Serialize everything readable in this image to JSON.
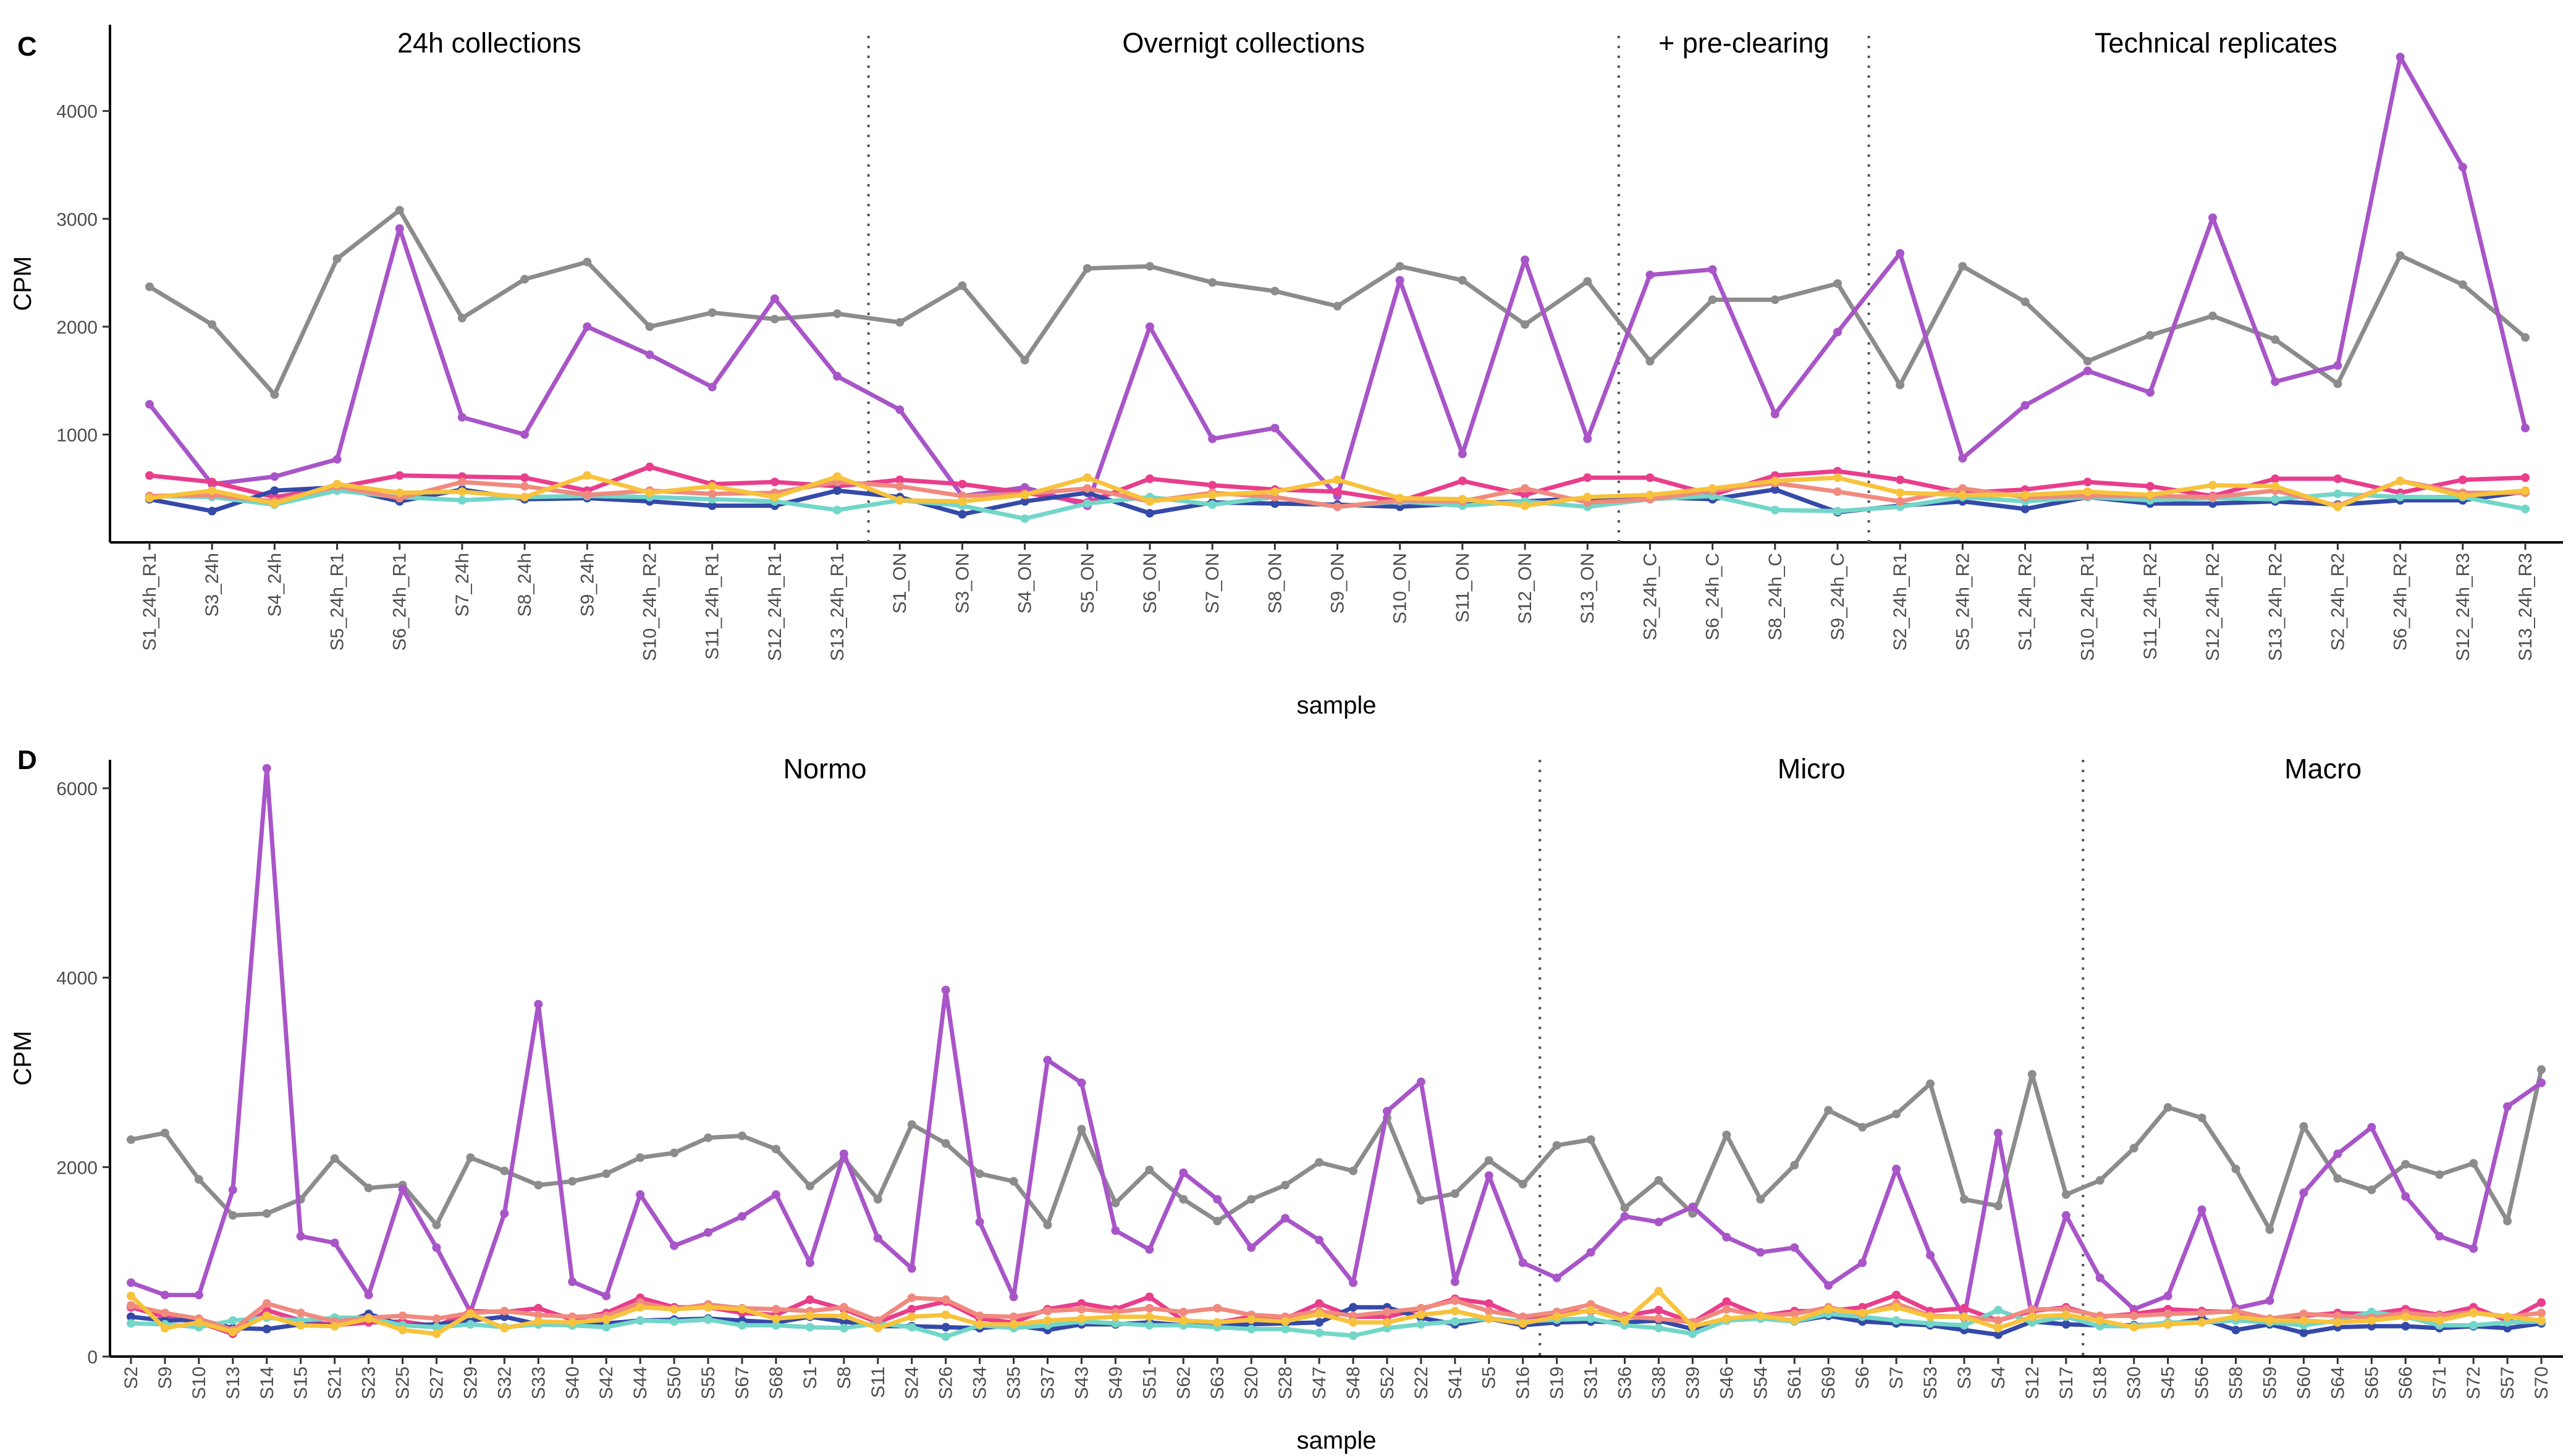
{
  "colors": {
    "grey": "#8c8c8c",
    "purple": "#a855c8",
    "navy": "#3449a8",
    "teal": "#72d6c8",
    "pink": "#e83e8c",
    "salmon": "#f08a7e",
    "yellow": "#f7c23c"
  },
  "chart_data": [
    {
      "type": "line",
      "panel_label": "C",
      "title": "",
      "xlabel": "sample",
      "ylabel": "CPM",
      "ylim": [
        0,
        4800
      ],
      "yticks": [
        1000,
        2000,
        3000,
        4000
      ],
      "groups": [
        {
          "label": "24h collections",
          "start": 0,
          "end": 11
        },
        {
          "label": "Overnigt collections",
          "start": 12,
          "end": 23
        },
        {
          "label": "+ pre-clearing",
          "start": 24,
          "end": 27
        },
        {
          "label": "Technical replicates",
          "start": 28,
          "end": 39
        }
      ],
      "categories": [
        "S1_24h_R1",
        "S3_24h",
        "S4_24h",
        "S5_24h_R1",
        "S6_24h_R1",
        "S7_24h",
        "S8_24h",
        "S9_24h",
        "S10_24h_R2",
        "S11_24h_R1",
        "S12_24h_R1",
        "S13_24h_R1",
        "S1_ON",
        "S3_ON",
        "S4_ON",
        "S5_ON",
        "S6_ON",
        "S7_ON",
        "S8_ON",
        "S9_ON",
        "S10_ON",
        "S11_ON",
        "S12_ON",
        "S13_ON",
        "S2_24h_C",
        "S6_24h_C",
        "S8_24h_C",
        "S9_24h_C",
        "S2_24h_R1",
        "S5_24h_R2",
        "S1_24h_R2",
        "S10_24h_R1",
        "S11_24h_R2",
        "S12_24h_R2",
        "S13_24h_R2",
        "S2_24h_R2",
        "S6_24h_R2",
        "S12_24h_R3",
        "S13_24h_R3"
      ],
      "series": [
        {
          "name": "grey",
          "color_key": "grey",
          "values": [
            2370,
            2020,
            1370,
            2630,
            3080,
            2080,
            2440,
            2600,
            2000,
            2130,
            2070,
            2120,
            2040,
            2380,
            1690,
            2540,
            2560,
            2410,
            2330,
            2190,
            2560,
            2430,
            2020,
            2420,
            1680,
            2250,
            2250,
            2400,
            1460,
            2560,
            2230,
            1680,
            1920,
            2100,
            1880,
            1470,
            2660,
            2390,
            1900
          ]
        },
        {
          "name": "purple",
          "color_key": "purple",
          "values": [
            1280,
            540,
            610,
            770,
            2910,
            1160,
            1000,
            2000,
            1740,
            1440,
            2260,
            1540,
            1230,
            430,
            510,
            340,
            2000,
            960,
            1060,
            430,
            2430,
            820,
            2620,
            960,
            2480,
            2530,
            1190,
            1950,
            2680,
            780,
            1270,
            1590,
            1390,
            3010,
            1490,
            1640,
            4500,
            3480,
            1060
          ]
        },
        {
          "name": "pink",
          "color_key": "pink",
          "values": [
            620,
            560,
            420,
            510,
            620,
            610,
            600,
            480,
            700,
            540,
            560,
            520,
            580,
            540,
            460,
            370,
            590,
            530,
            490,
            470,
            380,
            570,
            440,
            600,
            600,
            440,
            620,
            660,
            580,
            460,
            490,
            560,
            520,
            430,
            590,
            590,
            460,
            580,
            600
          ]
        },
        {
          "name": "navy",
          "color_key": "navy",
          "values": [
            400,
            290,
            480,
            510,
            380,
            490,
            400,
            410,
            380,
            340,
            340,
            480,
            420,
            260,
            380,
            460,
            270,
            370,
            360,
            350,
            330,
            360,
            380,
            410,
            420,
            400,
            490,
            280,
            340,
            380,
            310,
            420,
            360,
            360,
            380,
            350,
            390,
            390,
            470
          ]
        },
        {
          "name": "teal",
          "color_key": "teal",
          "values": [
            430,
            420,
            350,
            480,
            420,
            390,
            420,
            430,
            420,
            400,
            380,
            300,
            390,
            340,
            220,
            360,
            420,
            350,
            420,
            330,
            380,
            340,
            380,
            330,
            400,
            430,
            300,
            290,
            330,
            420,
            380,
            420,
            390,
            410,
            400,
            450,
            420,
            420,
            310
          ]
        },
        {
          "name": "salmon",
          "color_key": "salmon",
          "values": [
            430,
            440,
            380,
            520,
            410,
            560,
            520,
            440,
            480,
            450,
            460,
            560,
            520,
            430,
            450,
            500,
            380,
            460,
            420,
            330,
            390,
            380,
            500,
            370,
            400,
            480,
            550,
            470,
            380,
            500,
            420,
            430,
            430,
            420,
            480,
            340,
            570,
            460,
            460
          ]
        },
        {
          "name": "yellow",
          "color_key": "yellow",
          "values": [
            410,
            480,
            360,
            540,
            460,
            470,
            420,
            620,
            460,
            520,
            420,
            610,
            390,
            380,
            440,
            600,
            380,
            440,
            470,
            580,
            410,
            400,
            340,
            420,
            440,
            500,
            570,
            600,
            460,
            440,
            440,
            470,
            440,
            530,
            520,
            330,
            570,
            430,
            480
          ]
        }
      ]
    },
    {
      "type": "line",
      "panel_label": "D",
      "title": "",
      "xlabel": "sample",
      "ylabel": "CPM",
      "ylim": [
        0,
        6300
      ],
      "yticks": [
        0,
        2000,
        4000,
        6000
      ],
      "groups": [
        {
          "label": "Normo",
          "start": 0,
          "end": 41
        },
        {
          "label": "Micro",
          "start": 42,
          "end": 57
        },
        {
          "label": "Macro",
          "start": 58,
          "end": 78
        }
      ],
      "categories": [
        "S2",
        "S9",
        "S10",
        "S13",
        "S14",
        "S15",
        "S21",
        "S23",
        "S25",
        "S27",
        "S29",
        "S32",
        "S33",
        "S40",
        "S42",
        "S44",
        "S50",
        "S55",
        "S67",
        "S68",
        "S1",
        "S8",
        "S11",
        "S24",
        "S26",
        "S34",
        "S35",
        "S37",
        "S43",
        "S49",
        "S51",
        "S62",
        "S63",
        "S20",
        "S28",
        "S47",
        "S48",
        "S52",
        "S22",
        "S41",
        "S5",
        "S16",
        "S19",
        "S31",
        "S36",
        "S38",
        "S39",
        "S46",
        "S54",
        "S61",
        "S69",
        "S6",
        "S7",
        "S53",
        "S3",
        "S4",
        "S12",
        "S17",
        "S18",
        "S30",
        "S45",
        "S56",
        "S58",
        "S59",
        "S60",
        "S64",
        "S65",
        "S66",
        "S71",
        "S72",
        "S57",
        "S70"
      ],
      "series": [
        {
          "name": "grey",
          "color_key": "grey",
          "values": [
            2290,
            2360,
            1870,
            1490,
            1510,
            1660,
            2090,
            1780,
            1810,
            1390,
            2100,
            1960,
            1810,
            1850,
            1930,
            2100,
            2150,
            2310,
            2330,
            2190,
            1800,
            2090,
            1660,
            2450,
            2250,
            1930,
            1850,
            1390,
            2400,
            1620,
            1970,
            1660,
            1430,
            1660,
            1810,
            2050,
            1960,
            2520,
            1650,
            1720,
            2070,
            1820,
            2230,
            2290,
            1570,
            1860,
            1510,
            2340,
            1660,
            2020,
            2600,
            2420,
            2560,
            2880,
            1660,
            1590,
            2980,
            1710,
            1860,
            2200,
            2630,
            2520,
            1980,
            1340,
            2430,
            1880,
            1760,
            2030,
            1920,
            2040,
            1430,
            3030
          ]
        },
        {
          "name": "purple",
          "color_key": "purple",
          "values": [
            780,
            650,
            650,
            1760,
            6210,
            1270,
            1200,
            650,
            1770,
            1150,
            470,
            1510,
            3720,
            790,
            640,
            1710,
            1170,
            1310,
            1480,
            1710,
            990,
            2140,
            1250,
            930,
            3870,
            1420,
            630,
            3130,
            2890,
            1330,
            1130,
            1940,
            1660,
            1150,
            1460,
            1230,
            780,
            2590,
            2900,
            790,
            1910,
            990,
            830,
            1100,
            1480,
            1420,
            1580,
            1260,
            1100,
            1150,
            750,
            990,
            1980,
            1070,
            410,
            2360,
            410,
            1490,
            830,
            500,
            640,
            1550,
            510,
            590,
            1730,
            2140,
            2420,
            1690,
            1270,
            1140,
            2640,
            2890
          ]
        },
        {
          "name": "pink",
          "color_key": "pink",
          "values": [
            520,
            420,
            360,
            240,
            490,
            380,
            330,
            360,
            370,
            320,
            480,
            470,
            510,
            390,
            460,
            620,
            520,
            520,
            460,
            440,
            600,
            500,
            360,
            500,
            580,
            400,
            360,
            500,
            560,
            500,
            630,
            380,
            360,
            420,
            400,
            560,
            420,
            420,
            500,
            610,
            560,
            400,
            460,
            480,
            430,
            490,
            360,
            580,
            430,
            480,
            480,
            520,
            650,
            480,
            510,
            380,
            480,
            520,
            420,
            450,
            500,
            480,
            470,
            390,
            430,
            460,
            450,
            500,
            440,
            520,
            380,
            570
          ]
        },
        {
          "name": "navy",
          "color_key": "navy",
          "values": [
            420,
            380,
            390,
            300,
            290,
            340,
            330,
            450,
            330,
            340,
            380,
            420,
            340,
            330,
            350,
            380,
            390,
            400,
            380,
            360,
            420,
            370,
            320,
            320,
            310,
            300,
            330,
            280,
            340,
            340,
            360,
            330,
            320,
            340,
            350,
            360,
            520,
            520,
            410,
            340,
            400,
            330,
            360,
            370,
            360,
            380,
            290,
            380,
            420,
            370,
            430,
            370,
            350,
            330,
            280,
            230,
            370,
            340,
            330,
            330,
            340,
            400,
            280,
            340,
            250,
            310,
            320,
            320,
            300,
            320,
            300,
            350
          ]
        },
        {
          "name": "teal",
          "color_key": "teal",
          "values": [
            350,
            340,
            310,
            380,
            410,
            380,
            410,
            410,
            330,
            310,
            340,
            310,
            340,
            330,
            310,
            380,
            370,
            390,
            330,
            330,
            310,
            300,
            350,
            310,
            210,
            330,
            300,
            330,
            370,
            350,
            330,
            330,
            310,
            290,
            290,
            250,
            220,
            300,
            340,
            370,
            400,
            370,
            390,
            400,
            330,
            300,
            240,
            380,
            400,
            370,
            450,
            420,
            380,
            350,
            330,
            490,
            360,
            420,
            320,
            320,
            360,
            360,
            380,
            360,
            330,
            380,
            470,
            420,
            330,
            330,
            360,
            370
          ]
        },
        {
          "name": "salmon",
          "color_key": "salmon",
          "values": [
            540,
            460,
            400,
            280,
            560,
            460,
            370,
            410,
            430,
            400,
            460,
            480,
            440,
            420,
            430,
            570,
            500,
            550,
            510,
            500,
            480,
            520,
            380,
            620,
            600,
            430,
            420,
            480,
            500,
            470,
            510,
            470,
            510,
            440,
            420,
            480,
            430,
            470,
            510,
            590,
            480,
            420,
            470,
            550,
            420,
            400,
            360,
            500,
            430,
            450,
            520,
            450,
            560,
            430,
            420,
            380,
            500,
            500,
            430,
            430,
            450,
            460,
            480,
            400,
            450,
            430,
            410,
            460,
            430,
            470,
            420,
            460
          ]
        },
        {
          "name": "yellow",
          "color_key": "yellow",
          "values": [
            640,
            300,
            360,
            260,
            430,
            330,
            320,
            400,
            280,
            240,
            450,
            300,
            370,
            360,
            390,
            520,
            500,
            520,
            500,
            400,
            430,
            430,
            300,
            420,
            440,
            340,
            340,
            380,
            400,
            420,
            420,
            380,
            360,
            390,
            370,
            450,
            360,
            360,
            440,
            480,
            400,
            350,
            420,
            490,
            380,
            690,
            320,
            400,
            430,
            380,
            500,
            460,
            520,
            420,
            420,
            300,
            420,
            440,
            380,
            310,
            340,
            360,
            420,
            380,
            380,
            360,
            380,
            420,
            380,
            460,
            420,
            380
          ]
        }
      ]
    }
  ]
}
